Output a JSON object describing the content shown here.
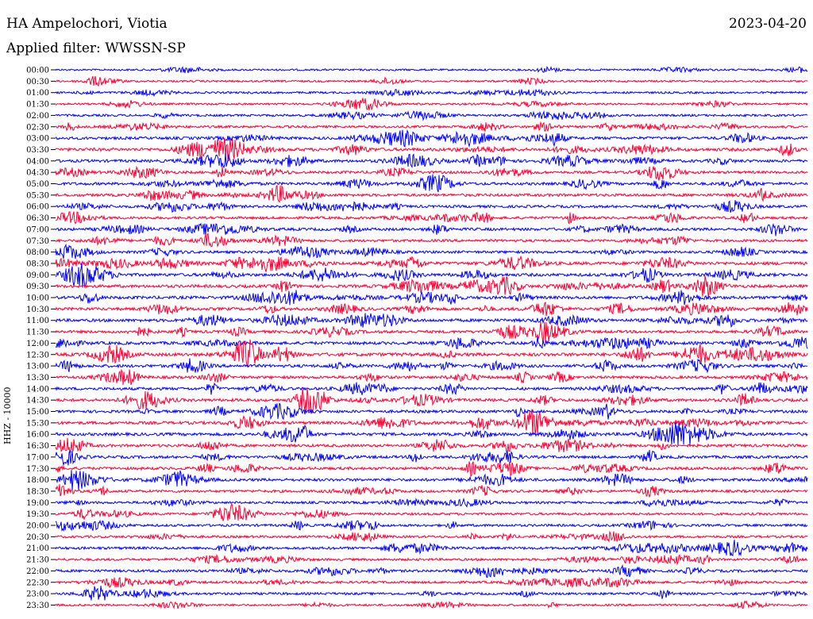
{
  "header": {
    "station": "HA Ampelochori, Viotia",
    "date": "2023-04-20",
    "filter": "Applied filter: WWSSN-SP"
  },
  "chart_data": {
    "type": "line",
    "title": "HA Ampelochori, Viotia",
    "ylabel": "HHZ - 10000",
    "colors": {
      "even_hour": "#0000ff",
      "half_hour": "#ff0033"
    },
    "rows": [
      {
        "label": "00:00",
        "activity": 0.2
      },
      {
        "label": "00:30",
        "activity": 0.25
      },
      {
        "label": "01:00",
        "activity": 0.3
      },
      {
        "label": "01:30",
        "activity": 0.3
      },
      {
        "label": "02:00",
        "activity": 0.4
      },
      {
        "label": "02:30",
        "activity": 0.5
      },
      {
        "label": "03:00",
        "activity": 0.7
      },
      {
        "label": "03:30",
        "activity": 0.9
      },
      {
        "label": "04:00",
        "activity": 0.7
      },
      {
        "label": "04:30",
        "activity": 0.6
      },
      {
        "label": "05:00",
        "activity": 0.7
      },
      {
        "label": "05:30",
        "activity": 0.7
      },
      {
        "label": "06:00",
        "activity": 0.6
      },
      {
        "label": "06:30",
        "activity": 0.6
      },
      {
        "label": "07:00",
        "activity": 0.7
      },
      {
        "label": "07:30",
        "activity": 0.6
      },
      {
        "label": "08:00",
        "activity": 0.6
      },
      {
        "label": "08:30",
        "activity": 0.9
      },
      {
        "label": "09:00",
        "activity": 0.8
      },
      {
        "label": "09:30",
        "activity": 0.8
      },
      {
        "label": "10:00",
        "activity": 0.8
      },
      {
        "label": "10:30",
        "activity": 0.8
      },
      {
        "label": "11:00",
        "activity": 0.8
      },
      {
        "label": "11:30",
        "activity": 0.7
      },
      {
        "label": "12:00",
        "activity": 0.8
      },
      {
        "label": "12:30",
        "activity": 1.0
      },
      {
        "label": "13:00",
        "activity": 0.8
      },
      {
        "label": "13:30",
        "activity": 0.7
      },
      {
        "label": "14:00",
        "activity": 0.7
      },
      {
        "label": "14:30",
        "activity": 0.8
      },
      {
        "label": "15:00",
        "activity": 0.7
      },
      {
        "label": "15:30",
        "activity": 0.8
      },
      {
        "label": "16:00",
        "activity": 0.8
      },
      {
        "label": "16:30",
        "activity": 0.7
      },
      {
        "label": "17:00",
        "activity": 0.7
      },
      {
        "label": "17:30",
        "activity": 0.7
      },
      {
        "label": "18:00",
        "activity": 0.7
      },
      {
        "label": "18:30",
        "activity": 0.6
      },
      {
        "label": "19:00",
        "activity": 0.5
      },
      {
        "label": "19:30",
        "activity": 0.5
      },
      {
        "label": "20:00",
        "activity": 0.5
      },
      {
        "label": "20:30",
        "activity": 0.5
      },
      {
        "label": "21:00",
        "activity": 0.6
      },
      {
        "label": "21:30",
        "activity": 0.5
      },
      {
        "label": "22:00",
        "activity": 0.6
      },
      {
        "label": "22:30",
        "activity": 0.5
      },
      {
        "label": "23:00",
        "activity": 0.5
      },
      {
        "label": "23:30",
        "activity": 0.3
      }
    ]
  }
}
